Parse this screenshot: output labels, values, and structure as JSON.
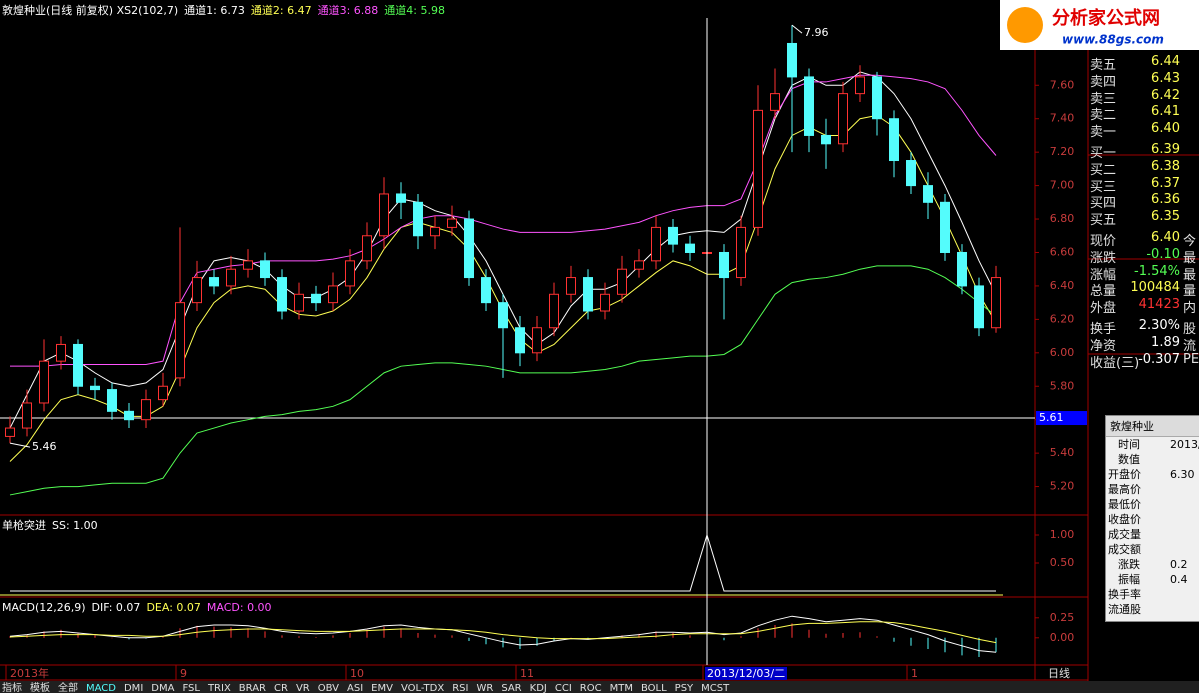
{
  "chart_data": [
    {
      "type": "candlestick",
      "header": [
        {
          "text": "敦煌种业(日线 前复权) XS2(102,7)",
          "color": "#ffffff"
        },
        {
          "text": "通道1: 6.73",
          "color": "#ffffff"
        },
        {
          "text": "通道2: 6.47",
          "color": "#ffff54"
        },
        {
          "text": "通道3: 6.88",
          "color": "#ff54ff"
        },
        {
          "text": "通道4: 5.98",
          "color": "#54ff54"
        }
      ],
      "categories": [
        "2013年",
        null,
        null,
        null,
        null,
        null,
        null,
        null,
        null,
        null,
        "9",
        null,
        null,
        null,
        null,
        null,
        null,
        null,
        null,
        null,
        "10",
        null,
        null,
        null,
        null,
        null,
        null,
        null,
        null,
        null,
        "11",
        null,
        null,
        null,
        null,
        null,
        null,
        null,
        null,
        null,
        null,
        "2013/12/03/二",
        null,
        null,
        null,
        null,
        null,
        null,
        null,
        null,
        null,
        null,
        null,
        "1",
        null,
        null,
        null,
        null,
        null
      ],
      "open": [
        5.5,
        5.55,
        5.7,
        5.95,
        6.05,
        5.8,
        5.78,
        5.65,
        5.6,
        5.72,
        5.85,
        6.3,
        6.45,
        6.4,
        6.5,
        6.55,
        6.45,
        6.25,
        6.35,
        6.3,
        6.4,
        6.55,
        6.7,
        6.95,
        6.9,
        6.7,
        6.75,
        6.8,
        6.45,
        6.3,
        6.15,
        6.0,
        6.15,
        6.35,
        6.45,
        6.25,
        6.35,
        6.5,
        6.55,
        6.75,
        6.65,
        6.6,
        6.6,
        6.45,
        6.75,
        7.45,
        7.85,
        7.65,
        7.3,
        7.25,
        7.55,
        7.65,
        7.4,
        7.15,
        7.0,
        6.9,
        6.6,
        6.4,
        6.15
      ],
      "high": [
        5.62,
        5.78,
        6.08,
        6.1,
        6.08,
        5.85,
        5.82,
        5.7,
        5.78,
        5.88,
        6.75,
        6.55,
        6.5,
        6.58,
        6.62,
        6.6,
        6.5,
        6.42,
        6.4,
        6.48,
        6.62,
        6.78,
        7.05,
        7.02,
        6.95,
        6.82,
        6.88,
        6.85,
        6.5,
        6.35,
        6.22,
        6.22,
        6.42,
        6.52,
        6.5,
        6.42,
        6.58,
        6.62,
        6.82,
        6.8,
        6.7,
        6.68,
        6.65,
        6.82,
        7.6,
        7.7,
        7.96,
        7.7,
        7.4,
        7.62,
        7.72,
        7.68,
        7.45,
        7.2,
        7.08,
        6.95,
        6.65,
        6.45,
        6.52
      ],
      "low": [
        5.46,
        5.5,
        5.65,
        5.9,
        5.75,
        5.72,
        5.6,
        5.55,
        5.55,
        5.68,
        5.8,
        6.25,
        6.35,
        6.35,
        6.45,
        6.4,
        6.2,
        6.2,
        6.25,
        6.25,
        6.35,
        6.5,
        6.62,
        6.8,
        6.62,
        6.62,
        6.7,
        6.4,
        6.25,
        5.85,
        5.92,
        5.95,
        6.1,
        6.3,
        6.2,
        6.2,
        6.3,
        6.45,
        6.5,
        6.6,
        6.55,
        6.55,
        6.2,
        6.4,
        6.7,
        7.4,
        7.2,
        7.2,
        7.1,
        7.2,
        7.5,
        7.3,
        7.05,
        6.95,
        6.8,
        6.55,
        6.35,
        6.1,
        6.12
      ],
      "close": [
        5.55,
        5.7,
        5.95,
        6.05,
        5.8,
        5.78,
        5.65,
        5.6,
        5.72,
        5.8,
        6.3,
        6.45,
        6.4,
        6.5,
        6.55,
        6.45,
        6.25,
        6.35,
        6.3,
        6.4,
        6.55,
        6.7,
        6.95,
        6.9,
        6.7,
        6.75,
        6.8,
        6.45,
        6.3,
        6.15,
        6.0,
        6.15,
        6.35,
        6.45,
        6.25,
        6.35,
        6.5,
        6.55,
        6.75,
        6.65,
        6.6,
        6.6,
        6.45,
        6.75,
        7.45,
        7.55,
        7.65,
        7.3,
        7.25,
        7.55,
        7.65,
        7.4,
        7.15,
        7.0,
        6.9,
        6.6,
        6.4,
        6.15,
        6.45
      ],
      "up_color": "#ff3232",
      "down_color": "#54fcfc",
      "series": [
        {
          "color": "#ffffff",
          "values": [
            5.55,
            5.75,
            5.95,
            6.0,
            5.95,
            5.88,
            5.82,
            5.8,
            5.82,
            5.9,
            6.15,
            6.4,
            6.55,
            6.57,
            6.55,
            6.5,
            6.4,
            6.33,
            6.33,
            6.38,
            6.45,
            6.6,
            6.8,
            6.92,
            6.9,
            6.85,
            6.82,
            6.7,
            6.55,
            6.35,
            6.15,
            6.05,
            6.12,
            6.28,
            6.38,
            6.38,
            6.42,
            6.52,
            6.62,
            6.7,
            6.72,
            6.73,
            6.72,
            6.8,
            7.1,
            7.4,
            7.6,
            7.65,
            7.6,
            7.6,
            7.68,
            7.65,
            7.55,
            7.4,
            7.2,
            7.0,
            6.78,
            6.55,
            6.35
          ]
        },
        {
          "color": "#ffff54",
          "values": [
            5.35,
            5.45,
            5.6,
            5.72,
            5.75,
            5.72,
            5.68,
            5.62,
            5.62,
            5.68,
            5.9,
            6.15,
            6.3,
            6.38,
            6.4,
            6.38,
            6.28,
            6.23,
            6.22,
            6.25,
            6.32,
            6.45,
            6.62,
            6.75,
            6.78,
            6.75,
            6.72,
            6.62,
            6.45,
            6.25,
            6.08,
            6.0,
            6.05,
            6.15,
            6.25,
            6.27,
            6.32,
            6.4,
            6.48,
            6.55,
            6.52,
            6.47,
            6.47,
            6.52,
            6.8,
            7.1,
            7.3,
            7.35,
            7.3,
            7.3,
            7.4,
            7.42,
            7.35,
            7.2,
            7.0,
            6.8,
            6.58,
            6.35,
            6.18
          ]
        },
        {
          "color": "#ff54ff",
          "values": [
            5.92,
            5.92,
            5.92,
            5.93,
            5.93,
            5.93,
            5.93,
            5.93,
            5.93,
            5.95,
            6.3,
            6.48,
            6.5,
            6.52,
            6.53,
            6.55,
            6.55,
            6.55,
            6.55,
            6.56,
            6.58,
            6.62,
            6.68,
            6.75,
            6.8,
            6.82,
            6.82,
            6.8,
            6.77,
            6.74,
            6.72,
            6.72,
            6.72,
            6.72,
            6.73,
            6.74,
            6.76,
            6.78,
            6.82,
            6.85,
            6.87,
            6.88,
            6.88,
            6.92,
            7.15,
            7.42,
            7.58,
            7.62,
            7.62,
            7.64,
            7.66,
            7.66,
            7.65,
            7.64,
            7.62,
            7.58,
            7.45,
            7.3,
            7.18
          ]
        },
        {
          "color": "#54ff54",
          "values": [
            5.15,
            5.17,
            5.19,
            5.2,
            5.2,
            5.21,
            5.22,
            5.22,
            5.22,
            5.25,
            5.4,
            5.52,
            5.55,
            5.58,
            5.6,
            5.62,
            5.63,
            5.65,
            5.66,
            5.68,
            5.72,
            5.8,
            5.88,
            5.92,
            5.93,
            5.94,
            5.94,
            5.93,
            5.92,
            5.9,
            5.88,
            5.88,
            5.88,
            5.88,
            5.89,
            5.9,
            5.92,
            5.95,
            5.96,
            5.97,
            5.98,
            5.98,
            5.99,
            6.05,
            6.2,
            6.35,
            6.42,
            6.44,
            6.45,
            6.47,
            6.5,
            6.52,
            6.52,
            6.52,
            6.5,
            6.45,
            6.38,
            6.3,
            6.22
          ]
        }
      ],
      "price_line": 5.61,
      "ylim": [
        5.03,
        8.11
      ],
      "yticks": [
        {
          "value": 5.2,
          "label": "5.20"
        },
        {
          "value": 5.4,
          "label": "5.40"
        },
        {
          "value": 5.6,
          "label": "5.60"
        },
        {
          "value": 5.8,
          "label": "5.80"
        },
        {
          "value": 6.0,
          "label": "6.00"
        },
        {
          "value": 6.2,
          "label": "6.20"
        },
        {
          "value": 6.4,
          "label": "6.40"
        },
        {
          "value": 6.6,
          "label": "6.60"
        },
        {
          "value": 6.8,
          "label": "6.80"
        },
        {
          "value": 7.0,
          "label": "7.00"
        },
        {
          "value": 7.2,
          "label": "7.20"
        },
        {
          "value": 7.4,
          "label": "7.40"
        },
        {
          "value": 7.6,
          "label": "7.60"
        }
      ]
    },
    {
      "type": "line",
      "header": [
        {
          "text": "单枪突进",
          "color": "#ffffff"
        },
        {
          "text": "SS: 1.00",
          "color": "#ffffff"
        }
      ],
      "color": "#ffffff",
      "values": [
        0,
        0,
        0,
        0,
        0,
        0,
        0,
        0,
        0,
        0,
        0,
        0,
        0,
        0,
        0,
        0,
        0,
        0,
        0,
        0,
        0,
        0,
        0,
        0,
        0,
        0,
        0,
        0,
        0,
        0,
        0,
        0,
        0,
        0,
        0,
        0,
        0,
        0,
        0,
        0,
        0,
        1,
        0,
        0,
        0,
        0,
        0,
        0,
        0,
        0,
        0,
        0,
        0,
        0,
        0,
        0,
        0,
        0,
        0
      ],
      "ylim": [
        -0.107,
        1.357
      ],
      "yticks": [
        {
          "value": 0.5,
          "label": "0.50"
        },
        {
          "value": 1,
          "label": "1.00"
        }
      ]
    },
    {
      "type": "macd",
      "header": [
        {
          "text": "MACD(12,26,9)",
          "color": "#ffffff"
        },
        {
          "text": "DIF: 0.07",
          "color": "#ffffff"
        },
        {
          "text": "DEA: 0.07",
          "color": "#ffff54"
        },
        {
          "text": "MACD: 0.00",
          "color": "#ff54ff"
        }
      ],
      "values": [
        0.02,
        0.04,
        0.08,
        0.1,
        0.06,
        0.03,
        0.0,
        -0.02,
        -0.01,
        0.02,
        0.12,
        0.15,
        0.14,
        0.13,
        0.12,
        0.08,
        0.03,
        0.02,
        0.01,
        0.03,
        0.06,
        0.1,
        0.14,
        0.12,
        0.06,
        0.04,
        0.03,
        -0.04,
        -0.08,
        -0.12,
        -0.14,
        -0.1,
        -0.04,
        0.0,
        -0.02,
        0.0,
        0.03,
        0.05,
        0.08,
        0.06,
        0.03,
        0.0,
        -0.03,
        0.02,
        0.12,
        0.16,
        0.18,
        0.1,
        0.05,
        0.06,
        0.07,
        0.02,
        -0.05,
        -0.1,
        -0.14,
        -0.18,
        -0.22,
        -0.24,
        -0.18
      ],
      "dif": [
        0.02,
        0.04,
        0.07,
        0.08,
        0.06,
        0.04,
        0.02,
        0.0,
        0.0,
        0.02,
        0.08,
        0.14,
        0.16,
        0.16,
        0.15,
        0.12,
        0.08,
        0.06,
        0.05,
        0.06,
        0.08,
        0.11,
        0.15,
        0.16,
        0.13,
        0.11,
        0.1,
        0.05,
        0.0,
        -0.05,
        -0.09,
        -0.08,
        -0.04,
        -0.01,
        -0.02,
        0.0,
        0.02,
        0.04,
        0.07,
        0.07,
        0.06,
        0.07,
        0.04,
        0.06,
        0.15,
        0.22,
        0.27,
        0.24,
        0.2,
        0.22,
        0.24,
        0.22,
        0.16,
        0.1,
        0.04,
        -0.04,
        -0.1,
        -0.16,
        -0.18
      ],
      "dea": [
        0.01,
        0.02,
        0.03,
        0.04,
        0.04,
        0.04,
        0.03,
        0.03,
        0.02,
        0.02,
        0.04,
        0.07,
        0.09,
        0.1,
        0.11,
        0.11,
        0.1,
        0.09,
        0.08,
        0.08,
        0.08,
        0.09,
        0.1,
        0.11,
        0.11,
        0.11,
        0.1,
        0.09,
        0.07,
        0.04,
        0.02,
        0.0,
        -0.01,
        -0.01,
        -0.01,
        -0.01,
        0.0,
        0.01,
        0.02,
        0.04,
        0.05,
        0.05,
        0.05,
        0.05,
        0.08,
        0.12,
        0.16,
        0.18,
        0.18,
        0.19,
        0.2,
        0.2,
        0.19,
        0.16,
        0.12,
        0.08,
        0.03,
        -0.02,
        -0.06
      ],
      "dif_color": "#ffffff",
      "dea_color": "#ffff54",
      "up_color": "#ff3232",
      "down_color": "#54fcfc",
      "ylim": [
        -0.34,
        0.51
      ],
      "yticks": [
        {
          "value": 0,
          "label": "0.00"
        },
        {
          "value": 0.25,
          "label": "0.25"
        }
      ]
    }
  ],
  "logo": {
    "title": "分析家公式网",
    "url": "www.88gs.com"
  },
  "quote_panel": {
    "rows": [
      [
        "卖五",
        "6.44",
        "#ffff54"
      ],
      [
        "卖四",
        "6.43",
        "#ffff54"
      ],
      [
        "卖三",
        "6.42",
        "#ffff54"
      ],
      [
        "卖二",
        "6.41",
        "#ffff54"
      ],
      [
        "卖一",
        "6.40",
        "#ffff54"
      ],
      [
        "买一",
        "6.39",
        "#ffff54"
      ],
      [
        "买二",
        "6.38",
        "#ffff54"
      ],
      [
        "买三",
        "6.37",
        "#ffff54"
      ],
      [
        "买四",
        "6.36",
        "#ffff54"
      ],
      [
        "买五",
        "6.35",
        "#ffff54"
      ],
      [
        "现价",
        "6.40",
        "#ffff54",
        "今"
      ],
      [
        "涨跌",
        "-0.10",
        "#54ff54",
        "最"
      ],
      [
        "涨幅",
        "-1.54%",
        "#54ff54",
        "最"
      ],
      [
        "总量",
        "100484",
        "#ffff54",
        "量"
      ],
      [
        "外盘",
        "41423",
        "#ff3232",
        "内"
      ],
      [
        "换手",
        "2.30%",
        "#ffffff",
        "股"
      ],
      [
        "净资",
        "1.89",
        "#ffffff",
        "流"
      ],
      [
        "收益(三)",
        "-0.307",
        "#ffffff",
        "PE"
      ]
    ]
  },
  "info_box": {
    "title": "敦煌种业",
    "rows": [
      [
        "时间",
        "2013/"
      ],
      [
        "数值"
      ],
      [
        "开盘价",
        "6.30"
      ],
      [
        "最高价"
      ],
      [
        "最低价"
      ],
      [
        "收盘价"
      ],
      [
        "成交量"
      ],
      [
        "成交额"
      ],
      [
        "涨跌",
        "0.2"
      ],
      [
        "振幅",
        "0.4"
      ],
      [
        "换手率"
      ],
      [
        "流通股"
      ]
    ]
  },
  "period": "日线",
  "tabs": [
    "指标",
    "模板",
    "全部",
    "MACD",
    "DMI",
    "DMA",
    "FSL",
    "TRIX",
    "BRAR",
    "CR",
    "VR",
    "OBV",
    "ASI",
    "EMV",
    "VOL-TDX",
    "RSI",
    "WR",
    "SAR",
    "KDJ",
    "CCI",
    "ROC",
    "MTM",
    "BOLL",
    "PSY",
    "MCST"
  ]
}
